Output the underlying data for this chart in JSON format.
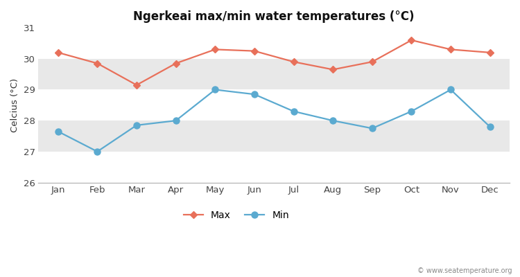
{
  "months": [
    "Jan",
    "Feb",
    "Mar",
    "Apr",
    "May",
    "Jun",
    "Jul",
    "Aug",
    "Sep",
    "Oct",
    "Nov",
    "Dec"
  ],
  "max_temps": [
    30.2,
    29.85,
    29.15,
    29.85,
    30.3,
    30.25,
    29.9,
    29.65,
    29.9,
    30.6,
    30.3,
    30.2
  ],
  "min_temps": [
    27.65,
    27.0,
    27.85,
    28.0,
    29.0,
    28.85,
    28.3,
    28.0,
    27.75,
    28.3,
    29.0,
    27.8
  ],
  "max_color": "#E8705A",
  "min_color": "#5BAAD0",
  "title": "Ngerkeai max/min water temperatures (°C)",
  "ylabel": "Celcius (°C)",
  "ylim": [
    26,
    31
  ],
  "yticks": [
    26,
    27,
    28,
    29,
    30,
    31
  ],
  "band_colors": [
    "#ffffff",
    "#e8e8e8"
  ],
  "fig_bg": "#ffffff",
  "plot_bg": "#ffffff",
  "watermark": "© www.seatemperature.org",
  "legend_max": "Max",
  "legend_min": "Min"
}
